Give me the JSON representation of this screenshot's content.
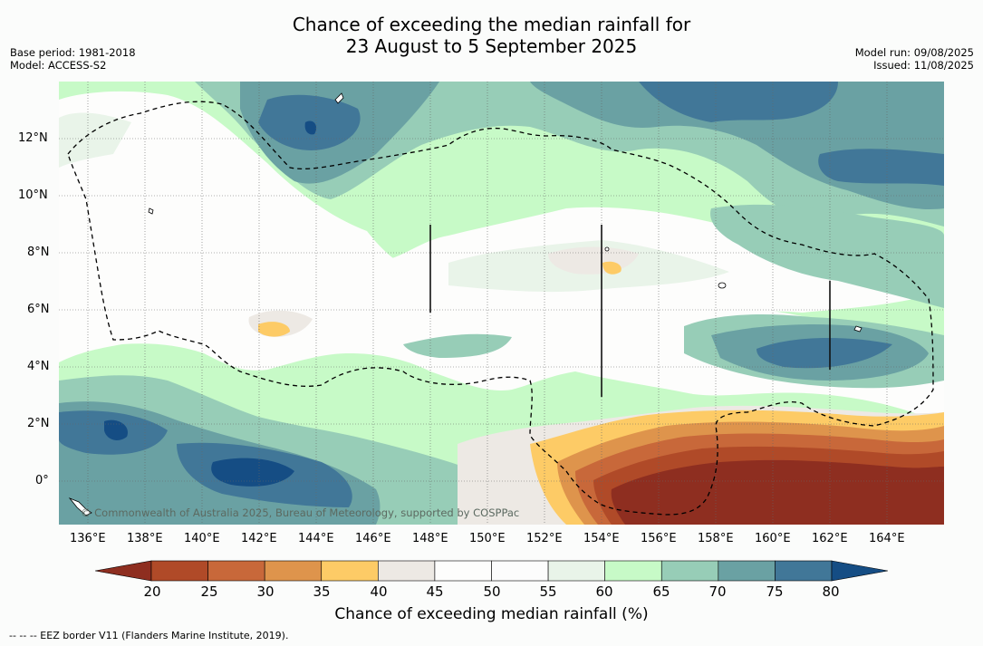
{
  "title": {
    "line1": "Chance of exceeding the median rainfall for",
    "line2": "23 August to 5 September 2025"
  },
  "meta_left": {
    "base_period": "Base period: 1981-2018",
    "model": "Model: ACCESS-S2"
  },
  "meta_right": {
    "model_run": "Model run: 09/08/2025",
    "issued": "Issued: 11/08/2025"
  },
  "map": {
    "lat_labels": [
      "12°N",
      "10°N",
      "8°N",
      "6°N",
      "4°N",
      "2°N",
      "0°"
    ],
    "lon_labels": [
      "136°E",
      "138°E",
      "140°E",
      "142°E",
      "144°E",
      "146°E",
      "148°E",
      "150°E",
      "152°E",
      "154°E",
      "156°E",
      "158°E",
      "160°E",
      "162°E",
      "164°E"
    ],
    "copyright": "© Commonwealth of Australia 2025, Bureau of Meteorology, supported by COSPPac",
    "ocean_color": "#ffffff",
    "border_style": "dashed black"
  },
  "colorbar": {
    "levels": [
      "20",
      "25",
      "30",
      "35",
      "40",
      "45",
      "50",
      "55",
      "60",
      "65",
      "70",
      "75",
      "80"
    ],
    "colors": [
      "#8e2e20",
      "#b04a28",
      "#c8683a",
      "#de944c",
      "#fdcb66",
      "#ede9e4",
      "#fdfdfc",
      "#fcfcfc",
      "#e9f4e9",
      "#c7fac7",
      "#97cdb7",
      "#6aa1a3",
      "#417798",
      "#154d84"
    ],
    "title": "Chance of exceeding median rainfall (%)"
  },
  "footnote": "--  --  -- EEZ border V11 (Flanders Marine Institute, 2019)."
}
